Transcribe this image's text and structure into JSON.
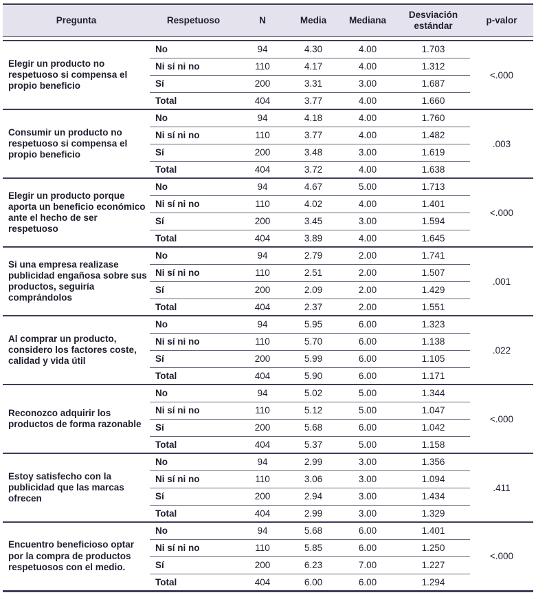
{
  "table": {
    "columns": [
      "Pregunta",
      "Respetuoso",
      "N",
      "Media",
      "Mediana",
      "Desviación estándar",
      "p-valor"
    ],
    "groups": [
      {
        "pregunta": "Elegir un producto no respetuoso si compensa el propio beneficio",
        "p_valor": "<.000",
        "rows": [
          {
            "respetuoso": "No",
            "n": "94",
            "media": "4.30",
            "mediana": "4.00",
            "de": "1.703"
          },
          {
            "respetuoso": "Ni sí ni no",
            "n": "110",
            "media": "4.17",
            "mediana": "4.00",
            "de": "1.312"
          },
          {
            "respetuoso": "Sí",
            "n": "200",
            "media": "3.31",
            "mediana": "3.00",
            "de": "1.687"
          },
          {
            "respetuoso": "Total",
            "n": "404",
            "media": "3.77",
            "mediana": "4.00",
            "de": "1.660"
          }
        ]
      },
      {
        "pregunta": "Consumir un producto no respetuoso si compensa el propio beneficio",
        "p_valor": ".003",
        "rows": [
          {
            "respetuoso": "No",
            "n": "94",
            "media": "4.18",
            "mediana": "4.00",
            "de": "1.760"
          },
          {
            "respetuoso": "Ni sí ni no",
            "n": "110",
            "media": "3.77",
            "mediana": "4.00",
            "de": "1.482"
          },
          {
            "respetuoso": "Sí",
            "n": "200",
            "media": "3.48",
            "mediana": "3.00",
            "de": "1.619"
          },
          {
            "respetuoso": "Total",
            "n": "404",
            "media": "3.72",
            "mediana": "4.00",
            "de": "1.638"
          }
        ]
      },
      {
        "pregunta": "Elegir un producto porque aporta un beneficio económico ante el hecho de ser respetuoso",
        "p_valor": "<.000",
        "rows": [
          {
            "respetuoso": "No",
            "n": "94",
            "media": "4.67",
            "mediana": "5.00",
            "de": "1.713"
          },
          {
            "respetuoso": "Ni sí ni no",
            "n": "110",
            "media": "4.02",
            "mediana": "4.00",
            "de": "1.401"
          },
          {
            "respetuoso": "Sí",
            "n": "200",
            "media": "3.45",
            "mediana": "3.00",
            "de": "1.594"
          },
          {
            "respetuoso": "Total",
            "n": "404",
            "media": "3.89",
            "mediana": "4.00",
            "de": "1.645"
          }
        ]
      },
      {
        "pregunta": "Si una empresa realizase publicidad engañosa sobre sus productos, seguiría comprándolos",
        "p_valor": ".001",
        "rows": [
          {
            "respetuoso": "No",
            "n": "94",
            "media": "2.79",
            "mediana": "2.00",
            "de": "1.741"
          },
          {
            "respetuoso": "Ni sí ni no",
            "n": "110",
            "media": "2.51",
            "mediana": "2.00",
            "de": "1.507"
          },
          {
            "respetuoso": "Sí",
            "n": "200",
            "media": "2.09",
            "mediana": "2.00",
            "de": "1.429"
          },
          {
            "respetuoso": "Total",
            "n": "404",
            "media": "2.37",
            "mediana": "2.00",
            "de": "1.551"
          }
        ]
      },
      {
        "pregunta": "Al comprar un producto, considero los factores coste, calidad y vida útil",
        "p_valor": ".022",
        "rows": [
          {
            "respetuoso": "No",
            "n": "94",
            "media": "5.95",
            "mediana": "6.00",
            "de": "1.323"
          },
          {
            "respetuoso": "Ni sí ni no",
            "n": "110",
            "media": "5.70",
            "mediana": "6.00",
            "de": "1.138"
          },
          {
            "respetuoso": "Sí",
            "n": "200",
            "media": "5.99",
            "mediana": "6.00",
            "de": "1.105"
          },
          {
            "respetuoso": "Total",
            "n": "404",
            "media": "5.90",
            "mediana": "6.00",
            "de": "1.171"
          }
        ]
      },
      {
        "pregunta": "Reconozco adquirir los productos de forma razonable",
        "p_valor": "<.000",
        "rows": [
          {
            "respetuoso": "No",
            "n": "94",
            "media": "5.02",
            "mediana": "5.00",
            "de": "1.344"
          },
          {
            "respetuoso": "Ni sí ni no",
            "n": "110",
            "media": "5.12",
            "mediana": "5.00",
            "de": "1.047"
          },
          {
            "respetuoso": "Sí",
            "n": "200",
            "media": "5.68",
            "mediana": "6.00",
            "de": "1.042"
          },
          {
            "respetuoso": "Total",
            "n": "404",
            "media": "5.37",
            "mediana": "5.00",
            "de": "1.158"
          }
        ]
      },
      {
        "pregunta": "Estoy satisfecho con la publicidad que las marcas ofrecen",
        "p_valor": ".411",
        "rows": [
          {
            "respetuoso": "No",
            "n": "94",
            "media": "2.99",
            "mediana": "3.00",
            "de": "1.356"
          },
          {
            "respetuoso": "Ni sí ni no",
            "n": "110",
            "media": "3.06",
            "mediana": "3.00",
            "de": "1.094"
          },
          {
            "respetuoso": "Sí",
            "n": "200",
            "media": "2.94",
            "mediana": "3.00",
            "de": "1.434"
          },
          {
            "respetuoso": "Total",
            "n": "404",
            "media": "2.99",
            "mediana": "3.00",
            "de": "1.329"
          }
        ]
      },
      {
        "pregunta": "Encuentro beneficioso optar por la compra de productos respetuosos con el medio.",
        "p_valor": "<.000",
        "rows": [
          {
            "respetuoso": "No",
            "n": "94",
            "media": "5.68",
            "mediana": "6.00",
            "de": "1.401"
          },
          {
            "respetuoso": "Ni sí ni no",
            "n": "110",
            "media": "5.85",
            "mediana": "6.00",
            "de": "1.250"
          },
          {
            "respetuoso": "Sí",
            "n": "200",
            "media": "6.23",
            "mediana": "7.00",
            "de": "1.227"
          },
          {
            "respetuoso": "Total",
            "n": "404",
            "media": "6.00",
            "mediana": "6.00",
            "de": "1.294"
          }
        ]
      }
    ]
  },
  "colors": {
    "header_background": "#e4e3ed",
    "heavy_rule": "#3d3d58",
    "thin_rule": "#63637a",
    "text": "#1e1e2e"
  }
}
